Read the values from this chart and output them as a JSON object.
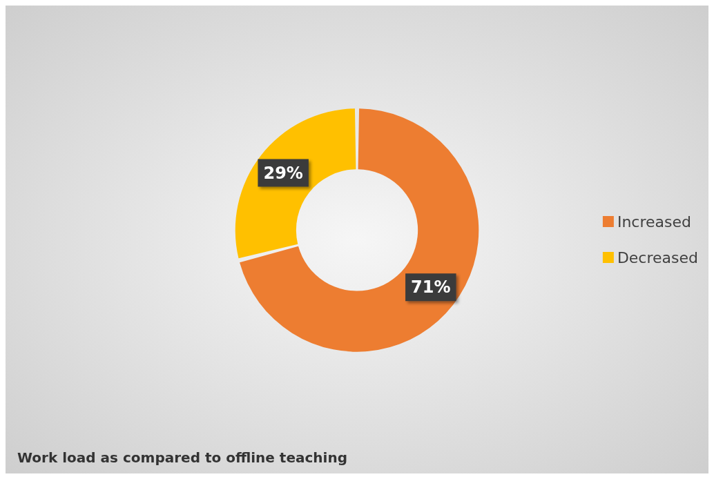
{
  "chart_data": {
    "type": "donut",
    "title": "Work load as compared to offline teaching",
    "categories": [
      "Increased",
      "Decreased"
    ],
    "values": [
      71,
      29
    ],
    "colors": [
      "#ed7d31",
      "#ffc000"
    ],
    "value_labels": [
      "71%",
      "29%"
    ],
    "legend": "right"
  }
}
